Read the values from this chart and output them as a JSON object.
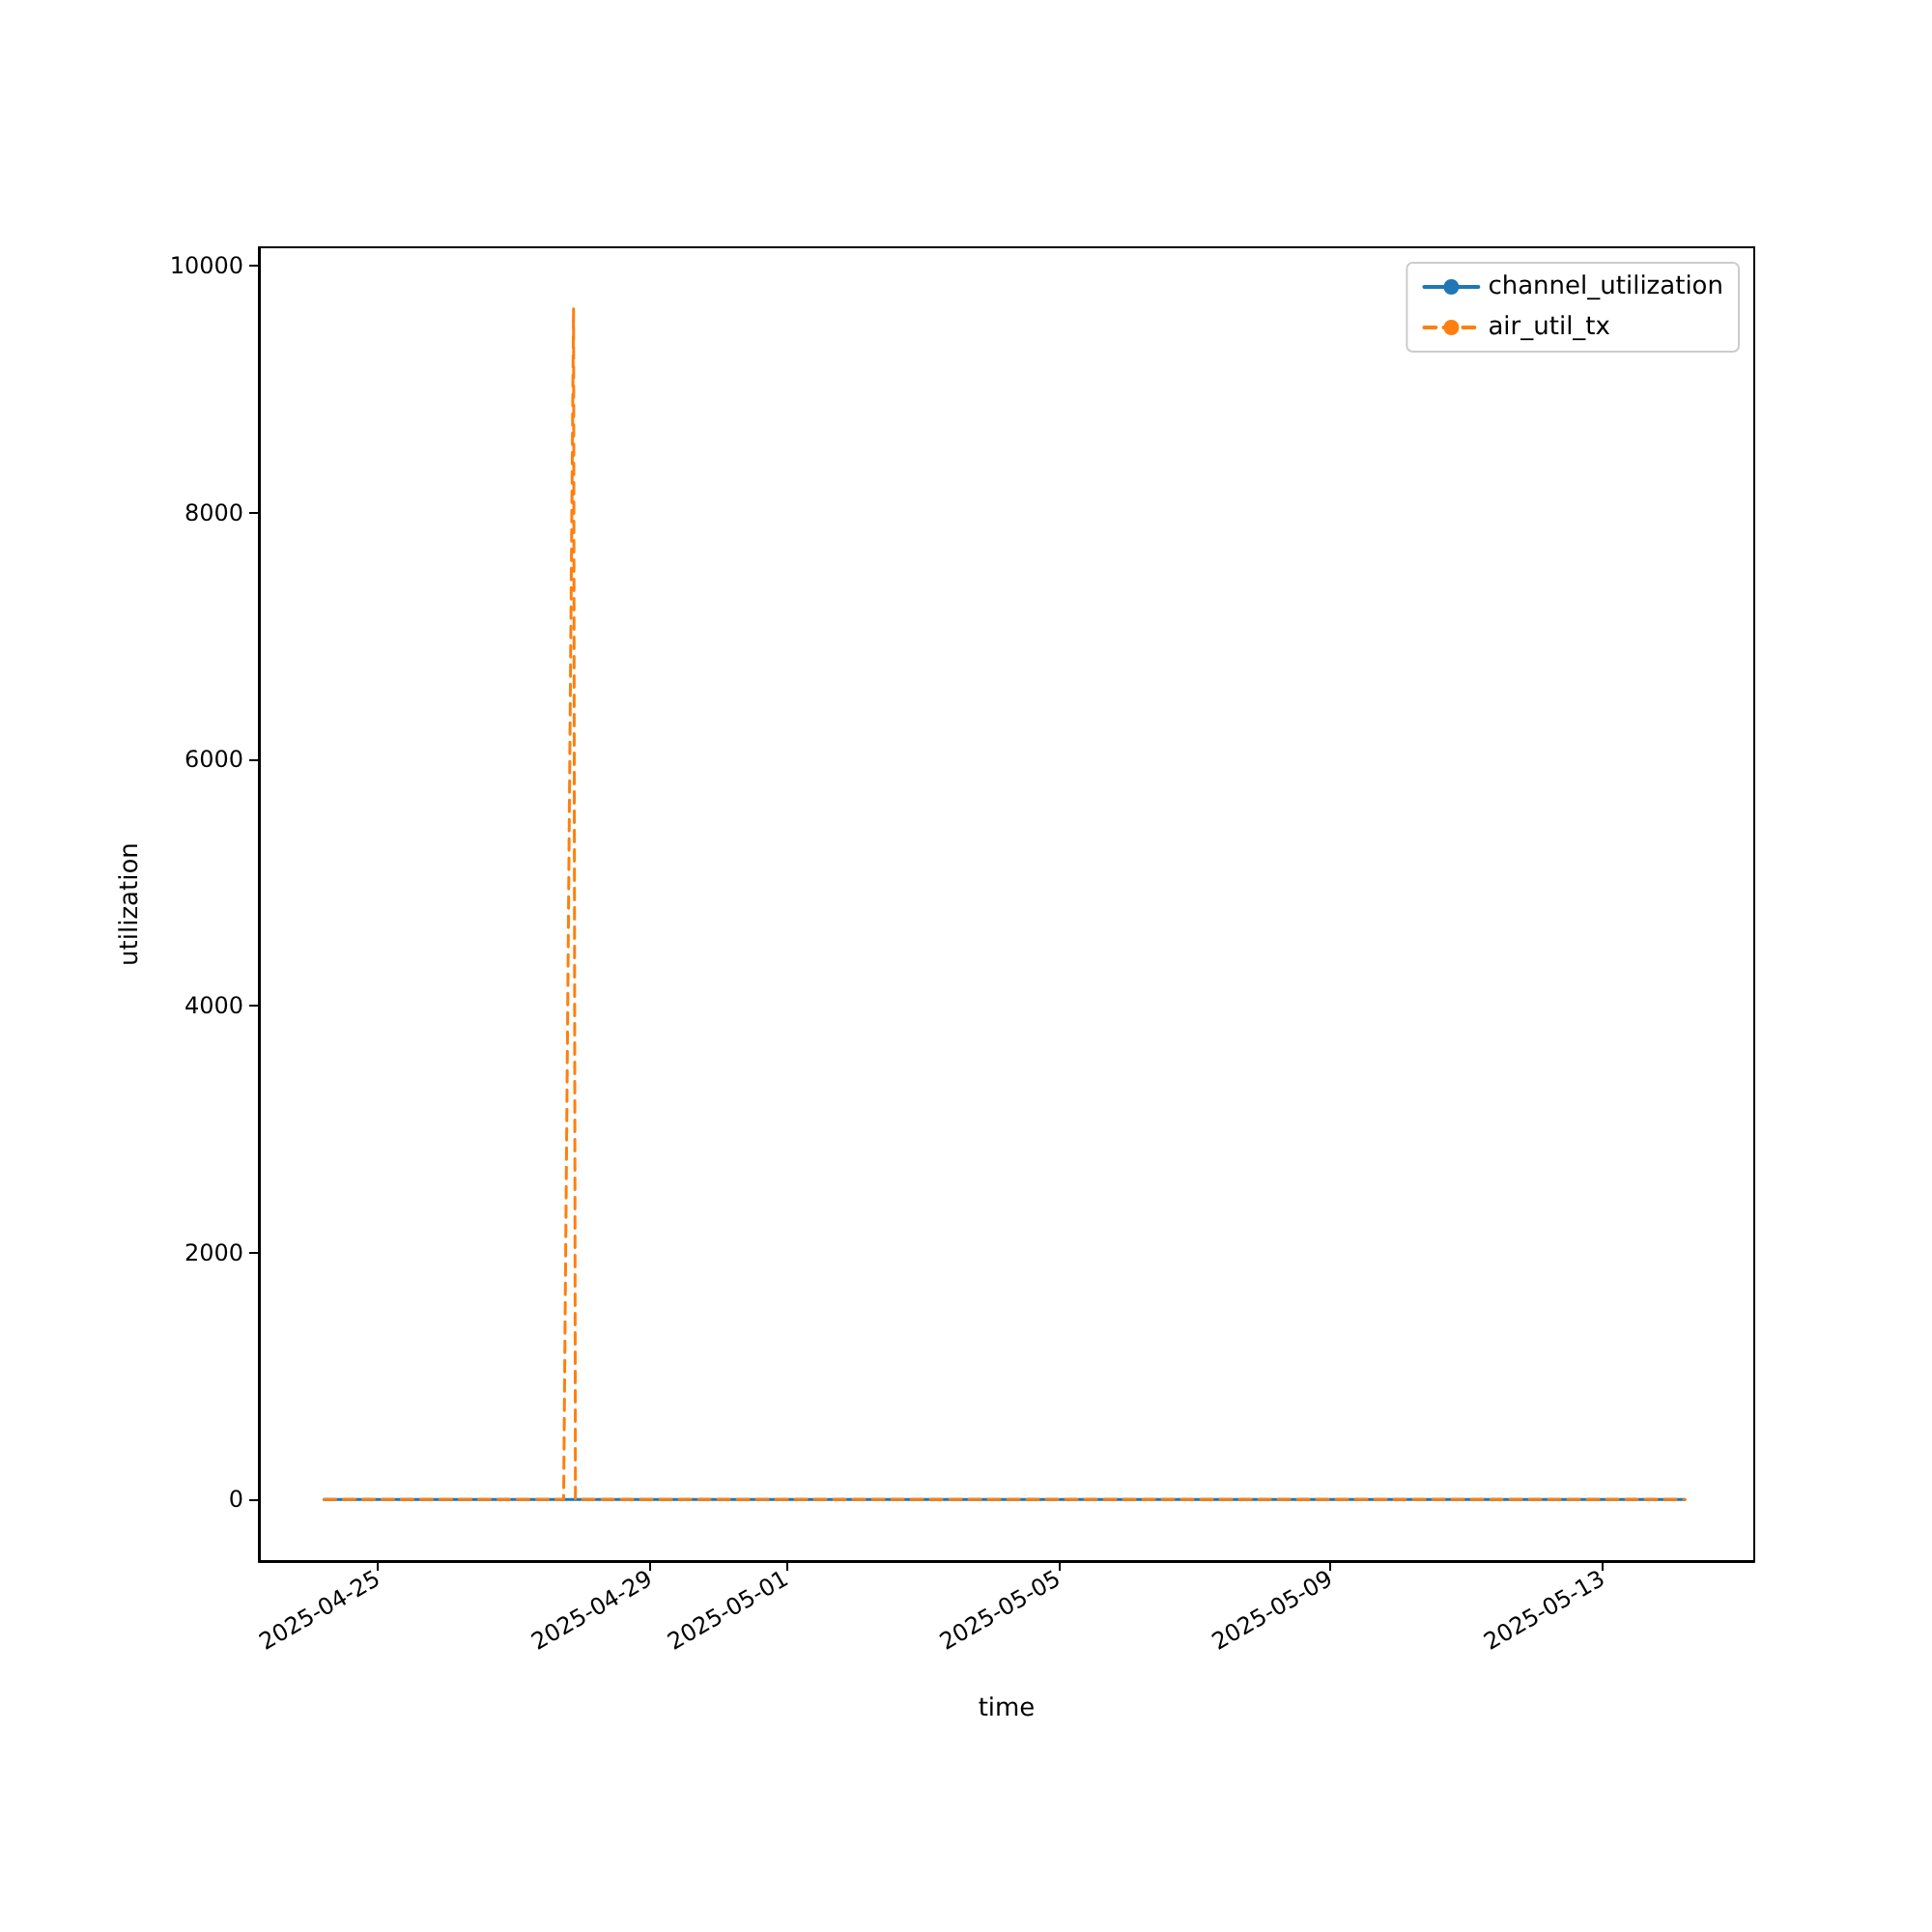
{
  "chart_data": {
    "type": "line",
    "xlabel": "time",
    "ylabel": "utilization",
    "xlim": [
      "2025-04-23T06:00",
      "2025-05-15T05:30"
    ],
    "ylim": [
      -500,
      10150
    ],
    "xticks": [
      "2025-04-25",
      "2025-04-29",
      "2025-05-01",
      "2025-05-05",
      "2025-05-09",
      "2025-05-13"
    ],
    "yticks": [
      0,
      2000,
      4000,
      6000,
      8000,
      10000
    ],
    "grid": false,
    "legend": "top right",
    "marker": "none",
    "series": [
      {
        "name": "channel_utilization",
        "color": "#1f77b4",
        "line_style": "solid",
        "x": [
          "2025-04-24T05:00",
          "2025-04-24T17:00",
          "2025-04-25T05:00",
          "2025-04-25T17:00",
          "2025-04-26T05:00",
          "2025-04-26T17:00",
          "2025-04-27T05:00",
          "2025-04-27T17:00",
          "2025-04-28T05:00",
          "2025-04-28T17:00",
          "2025-04-29T05:00",
          "2025-04-29T17:00",
          "2025-04-30T05:00",
          "2025-04-30T17:00",
          "2025-05-01T05:00",
          "2025-05-01T17:00",
          "2025-05-02T05:00",
          "2025-05-02T17:00",
          "2025-05-03T05:00",
          "2025-05-03T17:00",
          "2025-05-04T05:00",
          "2025-05-04T17:00",
          "2025-05-05T05:00",
          "2025-05-05T17:00",
          "2025-05-06T05:00",
          "2025-05-06T17:00",
          "2025-05-07T05:00",
          "2025-05-07T17:00",
          "2025-05-08T05:00",
          "2025-05-08T17:00",
          "2025-05-09T05:00",
          "2025-05-09T17:00",
          "2025-05-10T05:00",
          "2025-05-10T17:00",
          "2025-05-11T05:00",
          "2025-05-11T17:00",
          "2025-05-12T05:00",
          "2025-05-12T17:00",
          "2025-05-13T05:00",
          "2025-05-13T17:00",
          "2025-05-14T05:00"
        ],
        "values": [
          0,
          0,
          0,
          0,
          0,
          0,
          0,
          0,
          0,
          0,
          0,
          0,
          0,
          0,
          0,
          0,
          0,
          0,
          0,
          0,
          0,
          0,
          0,
          0,
          0,
          0,
          0,
          0,
          0,
          0,
          0,
          0,
          0,
          0,
          0,
          0,
          0,
          0,
          0,
          0,
          0
        ]
      },
      {
        "name": "air_util_tx",
        "color": "#ff7f0e",
        "line_style": "dashed",
        "x": [
          "2025-04-24T05:00",
          "2025-04-24T17:00",
          "2025-04-25T05:00",
          "2025-04-25T17:00",
          "2025-04-26T05:00",
          "2025-04-26T17:00",
          "2025-04-27T05:00",
          "2025-04-27T17:30",
          "2025-04-27T21:00",
          "2025-04-27T21:40",
          "2025-04-28T05:00",
          "2025-04-28T17:00",
          "2025-04-29T05:00",
          "2025-04-29T17:00",
          "2025-04-30T05:00",
          "2025-04-30T17:00",
          "2025-05-01T05:00",
          "2025-05-01T17:00",
          "2025-05-02T05:00",
          "2025-05-02T17:00",
          "2025-05-03T05:00",
          "2025-05-03T17:00",
          "2025-05-04T05:00",
          "2025-05-04T17:00",
          "2025-05-05T05:00",
          "2025-05-05T17:00",
          "2025-05-06T05:00",
          "2025-05-06T17:00",
          "2025-05-07T05:00",
          "2025-05-07T17:00",
          "2025-05-08T05:00",
          "2025-05-08T17:00",
          "2025-05-09T05:00",
          "2025-05-09T17:00",
          "2025-05-10T05:00",
          "2025-05-10T17:00",
          "2025-05-11T05:00",
          "2025-05-11T17:00",
          "2025-05-12T05:00",
          "2025-05-12T17:00",
          "2025-05-13T05:00",
          "2025-05-13T17:00",
          "2025-05-14T05:00"
        ],
        "values": [
          0,
          0,
          0,
          0,
          0,
          0,
          0,
          0,
          9650,
          0,
          0,
          0,
          0,
          0,
          0,
          0,
          0,
          0,
          0,
          0,
          0,
          0,
          0,
          0,
          0,
          0,
          0,
          0,
          0,
          0,
          0,
          0,
          0,
          0,
          0,
          0,
          0,
          0,
          0,
          0,
          0,
          0,
          0
        ]
      }
    ]
  }
}
